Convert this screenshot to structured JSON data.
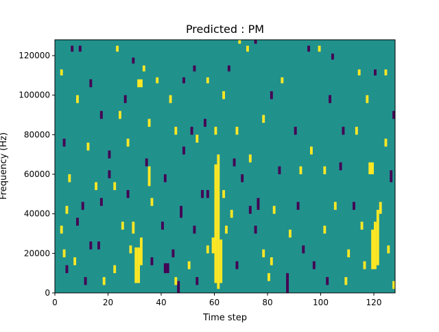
{
  "chart_data": {
    "type": "heatmap",
    "title": "Predicted : PM",
    "xlabel": "Time step",
    "ylabel": "Frequency (Hz)",
    "xlim": [
      0,
      128
    ],
    "ylim": [
      0,
      128000
    ],
    "x_ticks": [
      {
        "value": 0,
        "label": "0"
      },
      {
        "value": 20,
        "label": "20"
      },
      {
        "value": 40,
        "label": "40"
      },
      {
        "value": 60,
        "label": "60"
      },
      {
        "value": 80,
        "label": "80"
      },
      {
        "value": 100,
        "label": "100"
      },
      {
        "value": 120,
        "label": "120"
      }
    ],
    "y_ticks": [
      {
        "value": 0,
        "label": "0"
      },
      {
        "value": 20000,
        "label": "20000"
      },
      {
        "value": 40000,
        "label": "40000"
      },
      {
        "value": 60000,
        "label": "60000"
      },
      {
        "value": 80000,
        "label": "80000"
      },
      {
        "value": 100000,
        "label": "100000"
      },
      {
        "value": 120000,
        "label": "120000"
      }
    ],
    "grid": false,
    "colormap": "viridis",
    "colors": {
      "low": "#440154",
      "mid": "#21918c",
      "high": "#fde725"
    },
    "background_value": 0,
    "grid_size": {
      "time_steps": 128,
      "frequency_bins": 128
    },
    "freq_bin_hz": 1000,
    "cells": [
      {
        "x": 30,
        "y": 5,
        "w": 1,
        "h": 18,
        "v": 1
      },
      {
        "x": 31,
        "y": 5,
        "w": 1,
        "h": 18,
        "v": 1
      },
      {
        "x": 32,
        "y": 14,
        "w": 1,
        "h": 14,
        "v": 1
      },
      {
        "x": 29,
        "y": 30,
        "w": 1,
        "h": 6,
        "v": 1
      },
      {
        "x": 31,
        "y": 104,
        "w": 2,
        "h": 4,
        "v": 1
      },
      {
        "x": 60,
        "y": 5,
        "w": 1,
        "h": 60,
        "v": 1
      },
      {
        "x": 61,
        "y": 2,
        "w": 1,
        "h": 68,
        "v": 1
      },
      {
        "x": 62,
        "y": 5,
        "w": 1,
        "h": 22,
        "v": 1
      },
      {
        "x": 59,
        "y": 20,
        "w": 1,
        "h": 8,
        "v": 1
      },
      {
        "x": 63,
        "y": 48,
        "w": 1,
        "h": 4,
        "v": 1
      },
      {
        "x": 60,
        "y": 80,
        "w": 1,
        "h": 4,
        "v": 1
      },
      {
        "x": 119,
        "y": 12,
        "w": 1,
        "h": 20,
        "v": 1
      },
      {
        "x": 120,
        "y": 12,
        "w": 1,
        "h": 24,
        "v": 1
      },
      {
        "x": 121,
        "y": 14,
        "w": 1,
        "h": 28,
        "v": 1
      },
      {
        "x": 118,
        "y": 60,
        "w": 2,
        "h": 6,
        "v": 1
      },
      {
        "x": 122,
        "y": 40,
        "w": 1,
        "h": 6,
        "v": 1
      },
      {
        "x": 87,
        "y": 0,
        "w": 1,
        "h": 10,
        "v": -1
      },
      {
        "x": 46,
        "y": 0,
        "w": 1,
        "h": 6,
        "v": -1
      },
      {
        "x": 41,
        "y": 10,
        "w": 1,
        "h": 5,
        "v": -1
      },
      {
        "x": 42,
        "y": 10,
        "w": 1,
        "h": 5,
        "v": -1
      },
      {
        "x": 67,
        "y": 64,
        "w": 1,
        "h": 4,
        "v": -1
      },
      {
        "x": 76,
        "y": 42,
        "w": 1,
        "h": 6,
        "v": -1
      },
      {
        "x": 13,
        "y": 104,
        "w": 1,
        "h": 4,
        "v": -1
      },
      {
        "x": 69,
        "y": 126,
        "w": 1,
        "h": 2,
        "v": 1
      },
      {
        "x": 2,
        "y": 110,
        "w": 1,
        "h": 3,
        "v": 1
      },
      {
        "x": 6,
        "y": 122,
        "w": 1,
        "h": 3,
        "v": -1
      },
      {
        "x": 9,
        "y": 122,
        "w": 1,
        "h": 3,
        "v": -1
      },
      {
        "x": 23,
        "y": 122,
        "w": 1,
        "h": 3,
        "v": 1
      },
      {
        "x": 29,
        "y": 116,
        "w": 1,
        "h": 3,
        "v": -1
      },
      {
        "x": 33,
        "y": 112,
        "w": 1,
        "h": 3,
        "v": 1
      },
      {
        "x": 38,
        "y": 106,
        "w": 1,
        "h": 3,
        "v": 1
      },
      {
        "x": 48,
        "y": 106,
        "w": 1,
        "h": 3,
        "v": -1
      },
      {
        "x": 52,
        "y": 112,
        "w": 1,
        "h": 3,
        "v": -1
      },
      {
        "x": 57,
        "y": 106,
        "w": 1,
        "h": 3,
        "v": 1
      },
      {
        "x": 65,
        "y": 112,
        "w": 1,
        "h": 3,
        "v": -1
      },
      {
        "x": 72,
        "y": 122,
        "w": 1,
        "h": 3,
        "v": 1
      },
      {
        "x": 75,
        "y": 126,
        "w": 1,
        "h": 2,
        "v": -1
      },
      {
        "x": 85,
        "y": 106,
        "w": 1,
        "h": 3,
        "v": 1
      },
      {
        "x": 95,
        "y": 122,
        "w": 1,
        "h": 3,
        "v": -1
      },
      {
        "x": 99,
        "y": 122,
        "w": 1,
        "h": 3,
        "v": 1
      },
      {
        "x": 104,
        "y": 118,
        "w": 1,
        "h": 3,
        "v": -1
      },
      {
        "x": 114,
        "y": 110,
        "w": 1,
        "h": 3,
        "v": 1
      },
      {
        "x": 120,
        "y": 110,
        "w": 1,
        "h": 3,
        "v": -1
      },
      {
        "x": 124,
        "y": 110,
        "w": 1,
        "h": 3,
        "v": 1
      },
      {
        "x": 127,
        "y": 88,
        "w": 1,
        "h": 4,
        "v": -1
      },
      {
        "x": 17,
        "y": 88,
        "w": 1,
        "h": 4,
        "v": -1
      },
      {
        "x": 24,
        "y": 88,
        "w": 1,
        "h": 4,
        "v": 1
      },
      {
        "x": 35,
        "y": 84,
        "w": 1,
        "h": 4,
        "v": 1
      },
      {
        "x": 45,
        "y": 80,
        "w": 1,
        "h": 4,
        "v": 1
      },
      {
        "x": 51,
        "y": 80,
        "w": 1,
        "h": 4,
        "v": -1
      },
      {
        "x": 56,
        "y": 84,
        "w": 1,
        "h": 4,
        "v": -1
      },
      {
        "x": 68,
        "y": 80,
        "w": 1,
        "h": 4,
        "v": 1
      },
      {
        "x": 78,
        "y": 86,
        "w": 1,
        "h": 4,
        "v": 1
      },
      {
        "x": 90,
        "y": 80,
        "w": 1,
        "h": 4,
        "v": -1
      },
      {
        "x": 108,
        "y": 80,
        "w": 1,
        "h": 4,
        "v": -1
      },
      {
        "x": 113,
        "y": 80,
        "w": 1,
        "h": 4,
        "v": 1
      },
      {
        "x": 3,
        "y": 74,
        "w": 1,
        "h": 4,
        "v": -1
      },
      {
        "x": 12,
        "y": 72,
        "w": 1,
        "h": 4,
        "v": 1
      },
      {
        "x": 20,
        "y": 68,
        "w": 1,
        "h": 4,
        "v": -1
      },
      {
        "x": 27,
        "y": 74,
        "w": 1,
        "h": 4,
        "v": 1
      },
      {
        "x": 34,
        "y": 64,
        "w": 1,
        "h": 4,
        "v": -1
      },
      {
        "x": 48,
        "y": 70,
        "w": 1,
        "h": 4,
        "v": -1
      },
      {
        "x": 53,
        "y": 76,
        "w": 1,
        "h": 4,
        "v": 1
      },
      {
        "x": 73,
        "y": 66,
        "w": 1,
        "h": 4,
        "v": 1
      },
      {
        "x": 96,
        "y": 70,
        "w": 1,
        "h": 4,
        "v": 1
      },
      {
        "x": 107,
        "y": 62,
        "w": 1,
        "h": 4,
        "v": -1
      },
      {
        "x": 124,
        "y": 74,
        "w": 1,
        "h": 4,
        "v": 1
      },
      {
        "x": 5,
        "y": 56,
        "w": 1,
        "h": 4,
        "v": 1
      },
      {
        "x": 15,
        "y": 52,
        "w": 1,
        "h": 4,
        "v": 1
      },
      {
        "x": 20,
        "y": 58,
        "w": 1,
        "h": 4,
        "v": -1
      },
      {
        "x": 22,
        "y": 52,
        "w": 1,
        "h": 4,
        "v": 1
      },
      {
        "x": 27,
        "y": 48,
        "w": 1,
        "h": 4,
        "v": -1
      },
      {
        "x": 35,
        "y": 54,
        "w": 1,
        "h": 10,
        "v": 1
      },
      {
        "x": 41,
        "y": 56,
        "w": 1,
        "h": 4,
        "v": -1
      },
      {
        "x": 55,
        "y": 48,
        "w": 1,
        "h": 4,
        "v": -1
      },
      {
        "x": 57,
        "y": 48,
        "w": 1,
        "h": 4,
        "v": -1
      },
      {
        "x": 70,
        "y": 56,
        "w": 1,
        "h": 4,
        "v": -1
      },
      {
        "x": 84,
        "y": 60,
        "w": 1,
        "h": 4,
        "v": -1
      },
      {
        "x": 92,
        "y": 60,
        "w": 1,
        "h": 4,
        "v": 1
      },
      {
        "x": 101,
        "y": 60,
        "w": 1,
        "h": 4,
        "v": 1
      },
      {
        "x": 126,
        "y": 56,
        "w": 1,
        "h": 6,
        "v": -1
      },
      {
        "x": 4,
        "y": 40,
        "w": 1,
        "h": 4,
        "v": 1
      },
      {
        "x": 10,
        "y": 42,
        "w": 1,
        "h": 4,
        "v": -1
      },
      {
        "x": 17,
        "y": 44,
        "w": 1,
        "h": 4,
        "v": -1
      },
      {
        "x": 36,
        "y": 44,
        "w": 1,
        "h": 4,
        "v": 1
      },
      {
        "x": 47,
        "y": 38,
        "w": 1,
        "h": 6,
        "v": -1
      },
      {
        "x": 66,
        "y": 38,
        "w": 1,
        "h": 4,
        "v": 1
      },
      {
        "x": 73,
        "y": 40,
        "w": 1,
        "h": 4,
        "v": -1
      },
      {
        "x": 82,
        "y": 40,
        "w": 1,
        "h": 4,
        "v": 1
      },
      {
        "x": 91,
        "y": 42,
        "w": 1,
        "h": 4,
        "v": -1
      },
      {
        "x": 105,
        "y": 42,
        "w": 1,
        "h": 4,
        "v": 1
      },
      {
        "x": 112,
        "y": 42,
        "w": 1,
        "h": 4,
        "v": -1
      },
      {
        "x": 2,
        "y": 30,
        "w": 1,
        "h": 4,
        "v": 1
      },
      {
        "x": 8,
        "y": 34,
        "w": 1,
        "h": 4,
        "v": -1
      },
      {
        "x": 25,
        "y": 32,
        "w": 1,
        "h": 4,
        "v": 1
      },
      {
        "x": 40,
        "y": 32,
        "w": 1,
        "h": 4,
        "v": -1
      },
      {
        "x": 52,
        "y": 30,
        "w": 1,
        "h": 4,
        "v": -1
      },
      {
        "x": 64,
        "y": 30,
        "w": 1,
        "h": 4,
        "v": 1
      },
      {
        "x": 75,
        "y": 30,
        "w": 1,
        "h": 4,
        "v": -1
      },
      {
        "x": 88,
        "y": 28,
        "w": 1,
        "h": 4,
        "v": 1
      },
      {
        "x": 101,
        "y": 30,
        "w": 1,
        "h": 4,
        "v": 1
      },
      {
        "x": 115,
        "y": 32,
        "w": 1,
        "h": 4,
        "v": 1
      },
      {
        "x": 3,
        "y": 18,
        "w": 1,
        "h": 4,
        "v": 1
      },
      {
        "x": 13,
        "y": 22,
        "w": 1,
        "h": 4,
        "v": -1
      },
      {
        "x": 16,
        "y": 22,
        "w": 1,
        "h": 4,
        "v": -1
      },
      {
        "x": 28,
        "y": 20,
        "w": 1,
        "h": 4,
        "v": 1
      },
      {
        "x": 44,
        "y": 18,
        "w": 1,
        "h": 4,
        "v": -1
      },
      {
        "x": 57,
        "y": 20,
        "w": 1,
        "h": 4,
        "v": 1
      },
      {
        "x": 78,
        "y": 18,
        "w": 1,
        "h": 4,
        "v": 1
      },
      {
        "x": 93,
        "y": 20,
        "w": 1,
        "h": 4,
        "v": -1
      },
      {
        "x": 110,
        "y": 18,
        "w": 1,
        "h": 4,
        "v": 1
      },
      {
        "x": 125,
        "y": 20,
        "w": 1,
        "h": 4,
        "v": 1
      },
      {
        "x": 4,
        "y": 10,
        "w": 1,
        "h": 4,
        "v": -1
      },
      {
        "x": 7,
        "y": 14,
        "w": 1,
        "h": 4,
        "v": 1
      },
      {
        "x": 22,
        "y": 10,
        "w": 1,
        "h": 4,
        "v": 1
      },
      {
        "x": 36,
        "y": 14,
        "w": 1,
        "h": 4,
        "v": -1
      },
      {
        "x": 50,
        "y": 12,
        "w": 1,
        "h": 4,
        "v": 1
      },
      {
        "x": 68,
        "y": 12,
        "w": 1,
        "h": 4,
        "v": -1
      },
      {
        "x": 81,
        "y": 14,
        "w": 1,
        "h": 4,
        "v": 1
      },
      {
        "x": 97,
        "y": 12,
        "w": 1,
        "h": 4,
        "v": -1
      },
      {
        "x": 116,
        "y": 12,
        "w": 1,
        "h": 4,
        "v": 1
      },
      {
        "x": 11,
        "y": 4,
        "w": 1,
        "h": 4,
        "v": -1
      },
      {
        "x": 18,
        "y": 4,
        "w": 1,
        "h": 4,
        "v": 1
      },
      {
        "x": 45,
        "y": 4,
        "w": 1,
        "h": 4,
        "v": 1
      },
      {
        "x": 53,
        "y": 4,
        "w": 1,
        "h": 4,
        "v": -1
      },
      {
        "x": 80,
        "y": 6,
        "w": 1,
        "h": 4,
        "v": 1
      },
      {
        "x": 102,
        "y": 4,
        "w": 1,
        "h": 4,
        "v": -1
      },
      {
        "x": 109,
        "y": 4,
        "w": 1,
        "h": 4,
        "v": 1
      },
      {
        "x": 127,
        "y": 2,
        "w": 1,
        "h": 4,
        "v": 1
      },
      {
        "x": 8,
        "y": 96,
        "w": 1,
        "h": 4,
        "v": 1
      },
      {
        "x": 26,
        "y": 96,
        "w": 1,
        "h": 4,
        "v": -1
      },
      {
        "x": 43,
        "y": 96,
        "w": 1,
        "h": 4,
        "v": 1
      },
      {
        "x": 63,
        "y": 98,
        "w": 1,
        "h": 4,
        "v": 1
      },
      {
        "x": 81,
        "y": 98,
        "w": 1,
        "h": 4,
        "v": -1
      },
      {
        "x": 103,
        "y": 96,
        "w": 1,
        "h": 4,
        "v": -1
      },
      {
        "x": 117,
        "y": 96,
        "w": 1,
        "h": 4,
        "v": 1
      }
    ]
  }
}
